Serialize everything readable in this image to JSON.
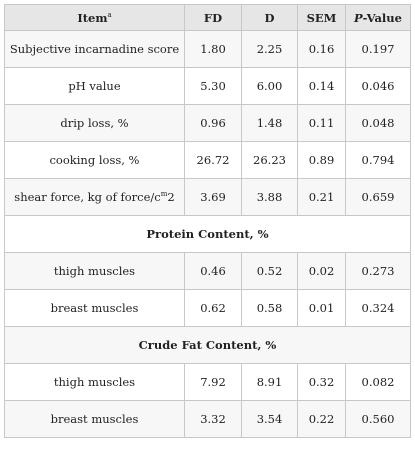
{
  "table": {
    "headers": {
      "item": "Item",
      "item_sup": "a",
      "fd": "FD",
      "d": "D",
      "sem": "SEM",
      "p_prefix": "P",
      "p_rest": "-Value"
    },
    "rows": [
      {
        "item": "Subjective incarnadine score",
        "fd": "1.80",
        "d": "2.25",
        "sem": "0.16",
        "p": "0.197"
      },
      {
        "item": "pH value",
        "fd": "5.30",
        "d": "6.00",
        "sem": "0.14",
        "p": "0.046"
      },
      {
        "item": "drip loss, %",
        "fd": "0.96",
        "d": "1.48",
        "sem": "0.11",
        "p": "0.048"
      },
      {
        "item": "cooking loss, %",
        "fd": "26.72",
        "d": "26.23",
        "sem": "0.89",
        "p": "0.794"
      },
      {
        "item": "shear force, kg of force/c",
        "item_sup": "m",
        "item_tail": "2",
        "fd": "3.69",
        "d": "3.88",
        "sem": "0.21",
        "p": "0.659"
      }
    ],
    "section_protein": "Protein Content, %",
    "protein_rows": [
      {
        "item": "thigh muscles",
        "fd": "0.46",
        "d": "0.52",
        "sem": "0.02",
        "p": "0.273"
      },
      {
        "item": "breast muscles",
        "fd": "0.62",
        "d": "0.58",
        "sem": "0.01",
        "p": "0.324"
      }
    ],
    "section_fat": "Crude Fat Content, %",
    "fat_rows": [
      {
        "item": "thigh muscles",
        "fd": "7.92",
        "d": "8.91",
        "sem": "0.32",
        "p": "0.082"
      },
      {
        "item": "breast muscles",
        "fd": "3.32",
        "d": "3.54",
        "sem": "0.22",
        "p": "0.560"
      }
    ]
  }
}
